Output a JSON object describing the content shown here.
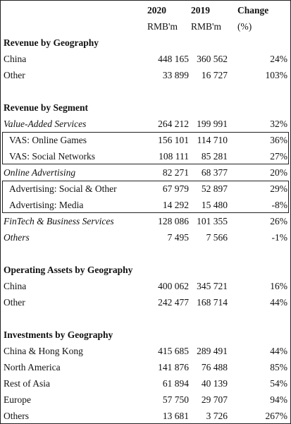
{
  "header": {
    "columns": [
      "2020",
      "2019",
      "Change"
    ],
    "units": [
      "RMB'm",
      "RMB'm",
      "(%)"
    ]
  },
  "sections": [
    {
      "title": "Revenue by Geography",
      "rows": [
        {
          "label": "China",
          "values": [
            "448 165",
            "360 562",
            "24%"
          ]
        },
        {
          "label": "Other",
          "values": [
            "33 899",
            "16 727",
            "103%"
          ]
        }
      ]
    },
    {
      "title": "Revenue by Segment",
      "rows": [
        {
          "label": "Value-Added Services",
          "values": [
            "264 212",
            "199 991",
            "32%"
          ]
        },
        {
          "label": "VAS: Online Games",
          "values": [
            "156 101",
            "114 710",
            "36%"
          ]
        },
        {
          "label": "VAS: Social Networks",
          "values": [
            "108 111",
            "85 281",
            "27%"
          ]
        },
        {
          "label": "Online Advertising",
          "values": [
            "82 271",
            "68 377",
            "20%"
          ]
        },
        {
          "label": "Advertising: Social & Other",
          "values": [
            "67 979",
            "52 897",
            "29%"
          ]
        },
        {
          "label": "Advertising: Media",
          "values": [
            "14 292",
            "15 480",
            "-8%"
          ]
        },
        {
          "label": "FinTech & Business Services",
          "values": [
            "128 086",
            "101 355",
            "26%"
          ]
        },
        {
          "label": "Others",
          "values": [
            "7 495",
            "7 566",
            "-1%"
          ]
        }
      ]
    },
    {
      "title": "Operating Assets by Geography",
      "rows": [
        {
          "label": "China",
          "values": [
            "400 062",
            "345 721",
            "16%"
          ]
        },
        {
          "label": "Other",
          "values": [
            "242 477",
            "168 714",
            "44%"
          ]
        }
      ]
    },
    {
      "title": "Investments by Geography",
      "rows": [
        {
          "label": "China & Hong Kong",
          "values": [
            "415 685",
            "289 491",
            "44%"
          ]
        },
        {
          "label": "North America",
          "values": [
            "141 876",
            "76 488",
            "85%"
          ]
        },
        {
          "label": "Rest of Asia",
          "values": [
            "61 894",
            "40 139",
            "54%"
          ]
        },
        {
          "label": "Europe",
          "values": [
            "57 750",
            "29 707",
            "94%"
          ]
        },
        {
          "label": "Others",
          "values": [
            "13 681",
            "3 726",
            "267%"
          ]
        }
      ]
    }
  ]
}
